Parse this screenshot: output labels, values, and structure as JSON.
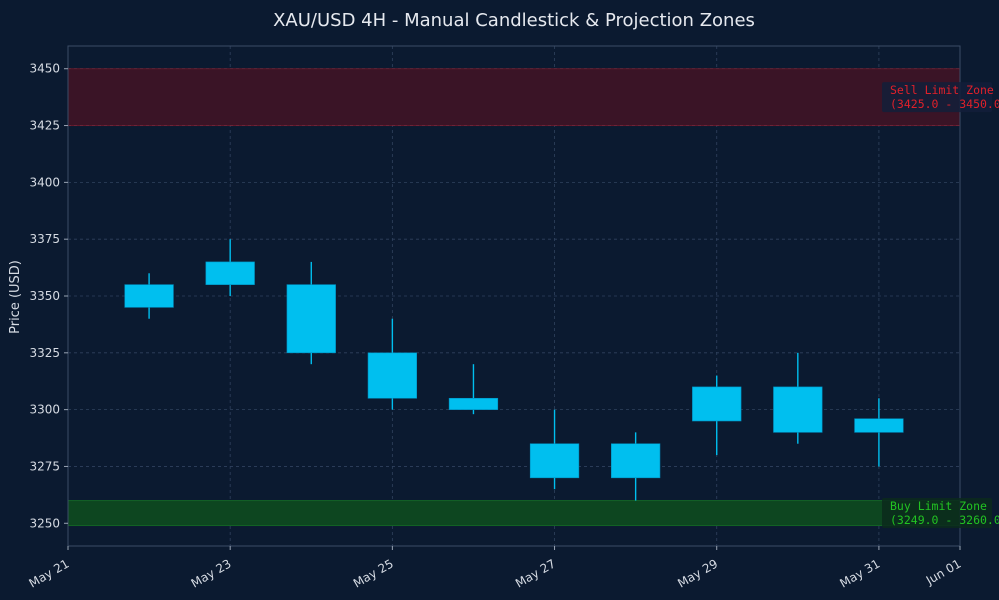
{
  "chart_data": {
    "type": "candlestick",
    "title": "XAU/USD 4H - Manual Candlestick & Projection Zones",
    "xlabel": "",
    "ylabel": "Price (USD)",
    "xlim": [
      "2025-05-21",
      "2025-06-01"
    ],
    "ylim": [
      3240,
      3460
    ],
    "yticks": [
      3250,
      3275,
      3300,
      3325,
      3350,
      3375,
      3400,
      3425,
      3450
    ],
    "xticks": [
      "2025-05-21",
      "2025-05-23",
      "2025-05-25",
      "2025-05-27",
      "2025-05-29",
      "2025-05-31",
      "2025-06-01"
    ],
    "xtick_labels": [
      "May 21",
      "May 23",
      "May 25",
      "May 27",
      "May 29",
      "May 31",
      "Jun 01"
    ],
    "grid": true,
    "candles": [
      {
        "date": "2025-05-22",
        "open": 3345,
        "high": 3360,
        "low": 3340,
        "close": 3355
      },
      {
        "date": "2025-05-23",
        "open": 3355,
        "high": 3375,
        "low": 3350,
        "close": 3365
      },
      {
        "date": "2025-05-24",
        "open": 3355,
        "high": 3365,
        "low": 3320,
        "close": 3325
      },
      {
        "date": "2025-05-25",
        "open": 3325,
        "high": 3340,
        "low": 3300,
        "close": 3305
      },
      {
        "date": "2025-05-26",
        "open": 3300,
        "high": 3320,
        "low": 3298,
        "close": 3305
      },
      {
        "date": "2025-05-27",
        "open": 3270,
        "high": 3300,
        "low": 3265,
        "close": 3285
      },
      {
        "date": "2025-05-28",
        "open": 3270,
        "high": 3290,
        "low": 3260,
        "close": 3285
      },
      {
        "date": "2025-05-29",
        "open": 3295,
        "high": 3315,
        "low": 3280,
        "close": 3310
      },
      {
        "date": "2025-05-30",
        "open": 3290,
        "high": 3325,
        "low": 3285,
        "close": 3310
      },
      {
        "date": "2025-05-31",
        "open": 3290,
        "high": 3305,
        "low": 3275,
        "close": 3296
      }
    ],
    "zones": [
      {
        "name": "Sell Limit Zone",
        "range_label": "(3425.0 - 3450.0)",
        "low": 3425,
        "high": 3450,
        "color": "#e0202a"
      },
      {
        "name": "Buy Limit Zone",
        "range_label": "(3249.0 - 3260.0)",
        "low": 3249,
        "high": 3260,
        "color": "#22c322"
      }
    ],
    "colors": {
      "background": "#0b1a30",
      "candle": "#00bfef",
      "sell_zone_fill": "#3a1426",
      "buy_zone_fill": "#0d4620",
      "grid": "#30425e",
      "text": "#d6dbe3"
    }
  }
}
